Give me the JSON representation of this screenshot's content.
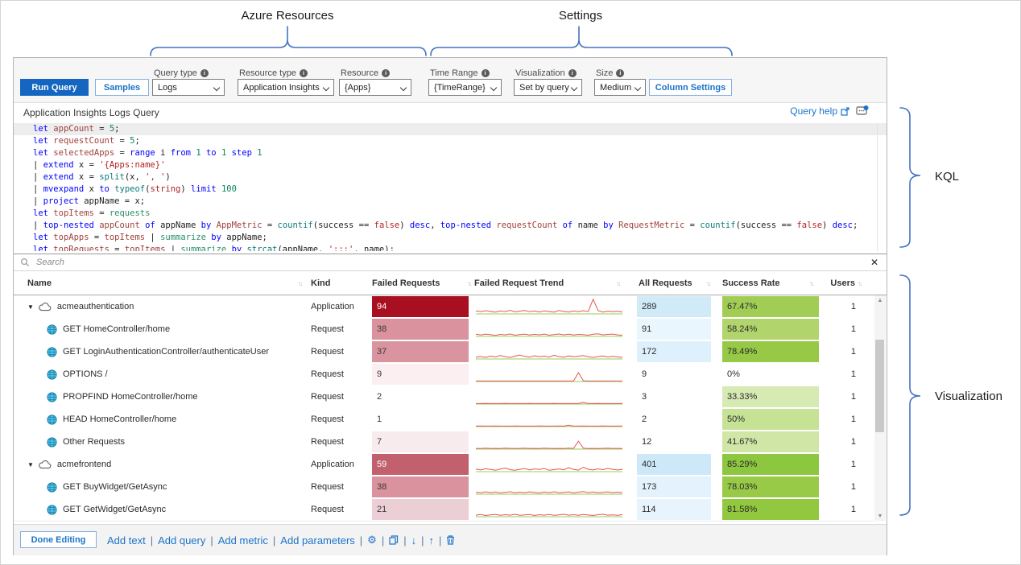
{
  "annotations": {
    "azure_resources": "Azure Resources",
    "settings": "Settings",
    "kql": "KQL",
    "visualization": "Visualization",
    "brace_color": "#4472c4"
  },
  "toolbar": {
    "run_query": "Run Query",
    "samples": "Samples",
    "column_settings": "Column Settings",
    "dropdowns": [
      {
        "label": "Query type",
        "value": "Logs"
      },
      {
        "label": "Resource type",
        "value": "Application Insights"
      },
      {
        "label": "Resource",
        "value": "{Apps}"
      },
      {
        "label": "Time Range",
        "value": "{TimeRange}"
      },
      {
        "label": "Visualization",
        "value": "Set by query"
      },
      {
        "label": "Size",
        "value": "Medium"
      }
    ]
  },
  "query": {
    "title": "Application Insights Logs Query",
    "help_label": "Query help",
    "lines": [
      [
        [
          "k",
          "let "
        ],
        [
          "v",
          "appCount"
        ],
        [
          "p",
          " = "
        ],
        [
          "n",
          "5"
        ],
        [
          "p",
          ";"
        ]
      ],
      [
        [
          "k",
          "let "
        ],
        [
          "v",
          "requestCount"
        ],
        [
          "p",
          " = "
        ],
        [
          "n",
          "5"
        ],
        [
          "p",
          ";"
        ]
      ],
      [
        [
          "k",
          "let "
        ],
        [
          "v",
          "selectedApps"
        ],
        [
          "p",
          " = "
        ],
        [
          "k",
          "range "
        ],
        [
          "p",
          "i "
        ],
        [
          "k",
          "from "
        ],
        [
          "n",
          "1 "
        ],
        [
          "k",
          "to "
        ],
        [
          "n",
          "1 "
        ],
        [
          "k",
          "step "
        ],
        [
          "n",
          "1"
        ]
      ],
      [
        [
          "p",
          "| "
        ],
        [
          "k",
          "extend "
        ],
        [
          "p",
          "x = "
        ],
        [
          "s",
          "'{Apps:name}'"
        ]
      ],
      [
        [
          "p",
          "| "
        ],
        [
          "k",
          "extend "
        ],
        [
          "p",
          "x = "
        ],
        [
          "f",
          "split"
        ],
        [
          "p",
          "(x, "
        ],
        [
          "s",
          "', '"
        ],
        [
          "p",
          ")"
        ]
      ],
      [
        [
          "p",
          "| "
        ],
        [
          "k",
          "mvexpand "
        ],
        [
          "p",
          "x "
        ],
        [
          "k",
          "to "
        ],
        [
          "f",
          "typeof"
        ],
        [
          "p",
          "("
        ],
        [
          "s",
          "string"
        ],
        [
          "p",
          ") "
        ],
        [
          "k",
          "limit "
        ],
        [
          "n",
          "100"
        ]
      ],
      [
        [
          "p",
          "| "
        ],
        [
          "k",
          "project "
        ],
        [
          "p",
          "appName = x;"
        ]
      ],
      [
        [
          "k",
          "let "
        ],
        [
          "v",
          "topItems"
        ],
        [
          "p",
          " = "
        ],
        [
          "t",
          "requests"
        ]
      ],
      [
        [
          "p",
          "| "
        ],
        [
          "k",
          "top-nested "
        ],
        [
          "v",
          "appCount"
        ],
        [
          "p",
          " "
        ],
        [
          "k",
          "of "
        ],
        [
          "p",
          "appName "
        ],
        [
          "k",
          "by "
        ],
        [
          "v",
          "AppMetric"
        ],
        [
          "p",
          " = "
        ],
        [
          "f",
          "countif"
        ],
        [
          "p",
          "(success "
        ],
        [
          "p",
          "== "
        ],
        [
          "s",
          "false"
        ],
        [
          "p",
          ") "
        ],
        [
          "k",
          "desc"
        ],
        [
          "p",
          ", "
        ],
        [
          "k",
          "top-nested "
        ],
        [
          "v",
          "requestCount"
        ],
        [
          "p",
          " "
        ],
        [
          "k",
          "of "
        ],
        [
          "p",
          "name "
        ],
        [
          "k",
          "by "
        ],
        [
          "v",
          "RequestMetric"
        ],
        [
          "p",
          " = "
        ],
        [
          "f",
          "countif"
        ],
        [
          "p",
          "(success == "
        ],
        [
          "s",
          "false"
        ],
        [
          "p",
          ") "
        ],
        [
          "k",
          "desc"
        ],
        [
          "p",
          ";"
        ]
      ],
      [
        [
          "k",
          "let "
        ],
        [
          "v",
          "topApps"
        ],
        [
          "p",
          " = "
        ],
        [
          "v",
          "topItems"
        ],
        [
          "p",
          " | "
        ],
        [
          "t",
          "summarize "
        ],
        [
          "k",
          "by "
        ],
        [
          "p",
          "appName;"
        ]
      ],
      [
        [
          "k",
          "let "
        ],
        [
          "v",
          "topRequests"
        ],
        [
          "p",
          " = "
        ],
        [
          "v",
          "topItems"
        ],
        [
          "p",
          " | "
        ],
        [
          "t",
          "summarize "
        ],
        [
          "k",
          "by "
        ],
        [
          "f",
          "strcat"
        ],
        [
          "p",
          "(appName, "
        ],
        [
          "s",
          "':::'"
        ],
        [
          "p",
          ", name);"
        ]
      ]
    ]
  },
  "search": {
    "placeholder": "Search",
    "close_glyph": "✕"
  },
  "grid": {
    "columns": [
      "Name",
      "Kind",
      "Failed Requests",
      "Failed Request Trend",
      "All Requests",
      "Success Rate",
      "Users"
    ],
    "rows": [
      {
        "type": "app",
        "name": "acmeauthentication",
        "kind": "Application",
        "failed": "94",
        "failed_bg": "#a80f21",
        "failed_fg": "#ffffff",
        "all": "289",
        "all_bg": "#d0eaf8",
        "rate": "67.47%",
        "rate_bg": "#a2cd55",
        "users": "1",
        "trend": [
          2,
          1.4,
          2.1,
          1.6,
          1.1,
          1.9,
          1.5,
          2.3,
          1.3,
          1.8,
          2.2,
          1.4,
          1.9,
          1.2,
          2.0,
          1.5,
          1.1,
          2.2,
          1.6,
          1.2,
          1.9,
          1.4,
          2.1,
          1.5,
          9.6,
          2.2,
          1.2,
          1.8,
          1.4,
          1.7,
          1.2
        ]
      },
      {
        "type": "req",
        "name": "GET HomeController/home",
        "kind": "Request",
        "failed": "38",
        "failed_bg": "#d9929e",
        "failed_fg": "#3a3a3a",
        "all": "91",
        "all_bg": "#eaf6fd",
        "rate": "58.24%",
        "rate_bg": "#b1d56c",
        "users": "1",
        "trend": [
          1.4,
          0.9,
          1.5,
          1.1,
          0.7,
          1.3,
          1.0,
          1.6,
          0.8,
          1.2,
          1.5,
          0.9,
          1.3,
          1.0,
          1.5,
          0.8,
          1.2,
          1.6,
          1.0,
          1.4,
          0.9,
          1.3,
          1.1,
          0.8,
          1.4,
          1.7,
          1.0,
          1.3,
          1.5,
          1.0,
          0.8
        ]
      },
      {
        "type": "req",
        "name": "GET LoginAuthenticationController/authenticateUser",
        "kind": "Request",
        "failed": "37",
        "failed_bg": "#d9949f",
        "failed_fg": "#3a3a3a",
        "all": "172",
        "all_bg": "#ddf0fb",
        "rate": "78.49%",
        "rate_bg": "#97c946",
        "users": "1",
        "trend": [
          1.1,
          1.6,
          1.0,
          1.9,
          1.3,
          2.3,
          1.5,
          1.0,
          1.8,
          2.6,
          1.7,
          1.2,
          2.1,
          1.4,
          1.9,
          1.2,
          2.4,
          1.6,
          1.1,
          2.0,
          1.4,
          1.8,
          2.2,
          1.4,
          1.0,
          1.6,
          2.0,
          1.3,
          1.7,
          1.3,
          1.0
        ]
      },
      {
        "type": "req",
        "name": "OPTIONS /",
        "kind": "Request",
        "failed": "9",
        "failed_bg": "#fbeff2",
        "failed_fg": "#3a3a3a",
        "all": "9",
        "all_bg": "",
        "rate": "0%",
        "rate_bg": "",
        "users": "1",
        "trend": [
          0.3,
          0.3,
          0.3,
          0.3,
          0.3,
          0.3,
          0.3,
          0.3,
          0.3,
          0.3,
          0.3,
          0.3,
          0.3,
          0.3,
          0.3,
          0.3,
          0.3,
          0.3,
          0.3,
          0.3,
          0.3,
          5.8,
          0.5,
          0.3,
          0.3,
          0.3,
          0.3,
          0.3,
          0.3,
          0.3,
          0.3
        ]
      },
      {
        "type": "req",
        "name": "PROPFIND HomeController/home",
        "kind": "Request",
        "failed": "2",
        "failed_bg": "",
        "failed_fg": "#3a3a3a",
        "all": "3",
        "all_bg": "",
        "rate": "33.33%",
        "rate_bg": "#d7eab3",
        "users": "1",
        "trend": [
          0.3,
          0.3,
          0.4,
          0.3,
          0.3,
          0.3,
          0.4,
          0.3,
          0.3,
          0.3,
          0.3,
          0.4,
          0.3,
          0.3,
          0.3,
          0.3,
          0.4,
          0.3,
          0.3,
          0.3,
          0.3,
          0.3,
          1.1,
          0.3,
          0.3,
          0.4,
          0.3,
          0.3,
          0.3,
          0.3,
          0.3
        ]
      },
      {
        "type": "req",
        "name": "HEAD HomeController/home",
        "kind": "Request",
        "failed": "1",
        "failed_bg": "",
        "failed_fg": "#3a3a3a",
        "all": "2",
        "all_bg": "",
        "rate": "50%",
        "rate_bg": "#c6e295",
        "users": "1",
        "trend": [
          0.3,
          0.4,
          0.3,
          0.3,
          0.4,
          0.3,
          0.3,
          0.3,
          0.4,
          0.3,
          0.3,
          0.3,
          0.3,
          0.4,
          0.3,
          0.3,
          0.3,
          0.4,
          0.3,
          0.9,
          0.3,
          0.3,
          0.4,
          0.3,
          0.3,
          0.3,
          0.4,
          0.3,
          0.3,
          0.3,
          0.3
        ]
      },
      {
        "type": "req",
        "name": "Other Requests",
        "kind": "Request",
        "failed": "7",
        "failed_bg": "#f8ebee",
        "failed_fg": "#3a3a3a",
        "all": "12",
        "all_bg": "",
        "rate": "41.67%",
        "rate_bg": "#cfe6a6",
        "users": "1",
        "trend": [
          0.5,
          0.4,
          0.6,
          0.4,
          0.5,
          0.4,
          0.6,
          0.5,
          0.4,
          0.5,
          0.6,
          0.4,
          0.5,
          0.4,
          0.6,
          0.5,
          0.4,
          0.5,
          0.4,
          0.6,
          0.5,
          5.2,
          0.6,
          0.4,
          0.5,
          0.4,
          0.5,
          0.6,
          0.4,
          0.5,
          0.4
        ]
      },
      {
        "type": "app",
        "name": "acmefrontend",
        "kind": "Application",
        "failed": "59",
        "failed_bg": "#c2606d",
        "failed_fg": "#ffffff",
        "all": "401",
        "all_bg": "#cde9f9",
        "rate": "85.29%",
        "rate_bg": "#8dc63f",
        "users": "1",
        "trend": [
          1.7,
          1.1,
          1.9,
          1.4,
          0.9,
          1.7,
          2.3,
          1.3,
          0.9,
          1.5,
          2.0,
          1.1,
          1.8,
          1.4,
          2.1,
          0.9,
          1.3,
          1.8,
          1.2,
          2.6,
          1.4,
          1.0,
          2.9,
          1.5,
          1.1,
          1.8,
          1.3,
          2.1,
          1.5,
          1.1,
          1.4
        ]
      },
      {
        "type": "req",
        "name": "GET BuyWidget/GetAsync",
        "kind": "Request",
        "failed": "38",
        "failed_bg": "#d9929e",
        "failed_fg": "#3a3a3a",
        "all": "173",
        "all_bg": "#e3f2fc",
        "rate": "78.03%",
        "rate_bg": "#98ca47",
        "users": "1",
        "trend": [
          1.3,
          0.9,
          1.5,
          1.0,
          1.4,
          0.8,
          1.2,
          1.6,
          0.9,
          1.3,
          1.0,
          1.5,
          1.1,
          0.8,
          1.4,
          1.0,
          1.6,
          0.9,
          1.2,
          1.5,
          0.8,
          1.3,
          1.7,
          1.0,
          1.4,
          0.9,
          1.2,
          1.5,
          1.0,
          1.3,
          0.9
        ]
      },
      {
        "type": "req",
        "name": "GET GetWidget/GetAsync",
        "kind": "Request",
        "failed": "21",
        "failed_bg": "#eccfd6",
        "failed_fg": "#3a3a3a",
        "all": "114",
        "all_bg": "#e8f4fd",
        "rate": "81.58%",
        "rate_bg": "#92c840",
        "users": "1",
        "trend": [
          1.0,
          1.4,
          0.8,
          1.2,
          1.5,
          0.9,
          1.3,
          1.0,
          1.6,
          0.9,
          1.2,
          1.4,
          0.8,
          1.3,
          1.0,
          1.5,
          0.9,
          1.2,
          1.6,
          1.0,
          1.3,
          0.9,
          1.4,
          1.1,
          0.8,
          1.3,
          1.6,
          1.0,
          1.2,
          0.9,
          1.3
        ]
      }
    ],
    "trend_line_color": "#e4574e",
    "trend_base_color": "#bbdd90"
  },
  "footer": {
    "done": "Done Editing",
    "links": [
      "Add text",
      "Add query",
      "Add metric",
      "Add parameters"
    ],
    "icons": [
      "settings-gear-icon",
      "copy-icon",
      "move-down-icon",
      "move-up-icon",
      "delete-icon"
    ]
  }
}
